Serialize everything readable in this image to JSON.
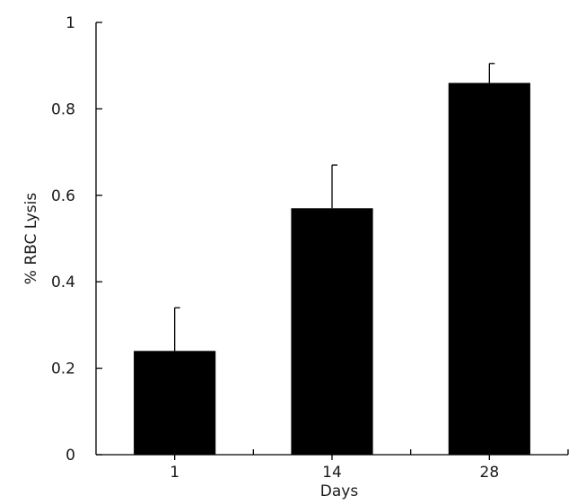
{
  "chart_data": {
    "type": "bar",
    "title": "",
    "xlabel": "Days",
    "ylabel": "% RBC Lysis",
    "categories": [
      "1",
      "14",
      "28"
    ],
    "values": [
      0.24,
      0.57,
      0.86
    ],
    "error_upper": [
      0.34,
      0.67,
      0.905
    ],
    "ylim": [
      0,
      1
    ],
    "yticks": [
      0,
      0.2,
      0.4,
      0.6,
      0.8,
      1
    ],
    "ytick_labels": [
      "0",
      "0.2",
      "0.4",
      "0.6",
      "0.8",
      "1"
    ],
    "grid": false,
    "legend": "none",
    "bar_color": "#000000"
  }
}
